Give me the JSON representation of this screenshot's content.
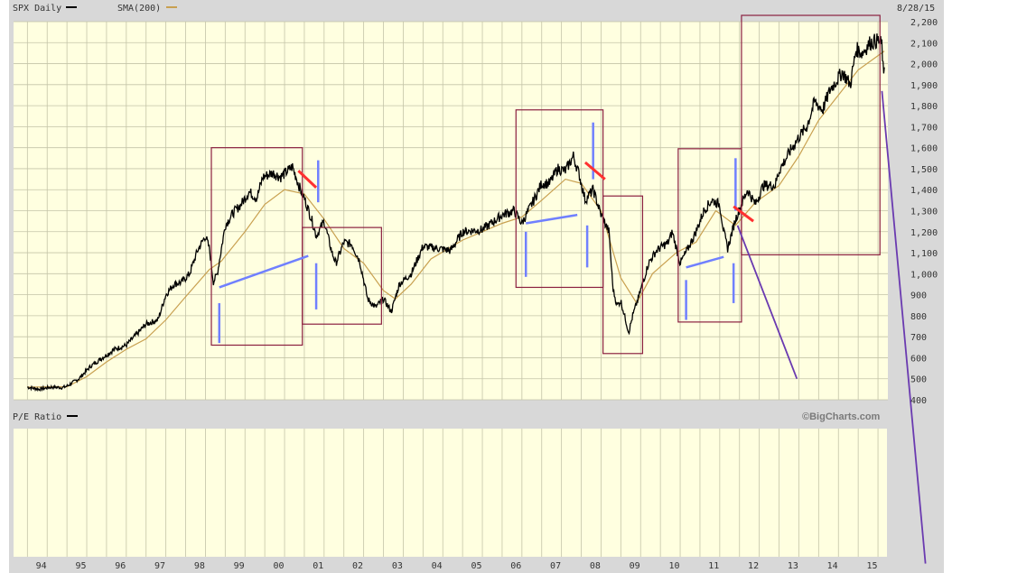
{
  "header": {
    "series_label": "SPX Daily",
    "sma_label": "SMA(200)",
    "date": "8/28/15"
  },
  "colors": {
    "plot_bg": "#ffffe0",
    "frame_bg": "#d8d8d8",
    "grid": "#c4c4a8",
    "price": "#000000",
    "sma": "#c8a050",
    "box": "#8b2040",
    "blue": "#7080ff",
    "red": "#ff3030",
    "purple": "#6a3ab0",
    "credit": "#7a7a7a"
  },
  "lower_panel": {
    "label": "P/E Ratio",
    "credit": "©BigCharts.com"
  },
  "chart_data": {
    "type": "line",
    "title": "SPX Daily",
    "series": [
      {
        "name": "SPX Daily",
        "points": [
          [
            1994.0,
            460
          ],
          [
            1994.3,
            450
          ],
          [
            1994.6,
            460
          ],
          [
            1994.9,
            458
          ],
          [
            1995.0,
            465
          ],
          [
            1995.3,
            500
          ],
          [
            1995.6,
            560
          ],
          [
            1995.9,
            600
          ],
          [
            1996.2,
            640
          ],
          [
            1996.5,
            660
          ],
          [
            1996.8,
            720
          ],
          [
            1997.0,
            760
          ],
          [
            1997.3,
            780
          ],
          [
            1997.5,
            900
          ],
          [
            1997.7,
            950
          ],
          [
            1997.9,
            960
          ],
          [
            1998.1,
            1000
          ],
          [
            1998.3,
            1110
          ],
          [
            1998.5,
            1180
          ],
          [
            1998.6,
            1120
          ],
          [
            1998.7,
            960
          ],
          [
            1998.8,
            1000
          ],
          [
            1999.0,
            1230
          ],
          [
            1999.2,
            1290
          ],
          [
            1999.4,
            1330
          ],
          [
            1999.6,
            1390
          ],
          [
            1999.8,
            1360
          ],
          [
            1999.95,
            1460
          ],
          [
            2000.2,
            1480
          ],
          [
            2000.4,
            1460
          ],
          [
            2000.7,
            1510
          ],
          [
            2000.9,
            1400
          ],
          [
            2001.0,
            1360
          ],
          [
            2001.2,
            1250
          ],
          [
            2001.3,
            1180
          ],
          [
            2001.5,
            1250
          ],
          [
            2001.7,
            1100
          ],
          [
            2001.8,
            1050
          ],
          [
            2002.0,
            1150
          ],
          [
            2002.2,
            1140
          ],
          [
            2002.4,
            1060
          ],
          [
            2002.6,
            880
          ],
          [
            2002.8,
            840
          ],
          [
            2003.0,
            880
          ],
          [
            2003.2,
            820
          ],
          [
            2003.4,
            950
          ],
          [
            2003.7,
            1000
          ],
          [
            2004.0,
            1130
          ],
          [
            2004.4,
            1120
          ],
          [
            2004.7,
            1110
          ],
          [
            2005.0,
            1200
          ],
          [
            2005.5,
            1210
          ],
          [
            2005.8,
            1250
          ],
          [
            2006.0,
            1280
          ],
          [
            2006.3,
            1300
          ],
          [
            2006.5,
            1240
          ],
          [
            2006.8,
            1350
          ],
          [
            2007.0,
            1430
          ],
          [
            2007.2,
            1430
          ],
          [
            2007.4,
            1500
          ],
          [
            2007.6,
            1490
          ],
          [
            2007.8,
            1560
          ],
          [
            2007.95,
            1470
          ],
          [
            2008.1,
            1350
          ],
          [
            2008.3,
            1400
          ],
          [
            2008.5,
            1280
          ],
          [
            2008.7,
            1200
          ],
          [
            2008.8,
            930
          ],
          [
            2008.9,
            850
          ],
          [
            2009.0,
            870
          ],
          [
            2009.2,
            720
          ],
          [
            2009.3,
            800
          ],
          [
            2009.5,
            920
          ],
          [
            2009.7,
            1050
          ],
          [
            2009.9,
            1110
          ],
          [
            2010.2,
            1150
          ],
          [
            2010.3,
            1200
          ],
          [
            2010.5,
            1050
          ],
          [
            2010.7,
            1120
          ],
          [
            2010.9,
            1200
          ],
          [
            2011.1,
            1300
          ],
          [
            2011.3,
            1350
          ],
          [
            2011.5,
            1330
          ],
          [
            2011.6,
            1200
          ],
          [
            2011.7,
            1120
          ],
          [
            2011.9,
            1260
          ],
          [
            2012.2,
            1400
          ],
          [
            2012.4,
            1330
          ],
          [
            2012.6,
            1420
          ],
          [
            2012.9,
            1420
          ],
          [
            2013.0,
            1490
          ],
          [
            2013.3,
            1590
          ],
          [
            2013.5,
            1650
          ],
          [
            2013.7,
            1700
          ],
          [
            2013.9,
            1820
          ],
          [
            2014.1,
            1780
          ],
          [
            2014.3,
            1880
          ],
          [
            2014.6,
            1960
          ],
          [
            2014.8,
            1900
          ],
          [
            2014.95,
            2070
          ],
          [
            2015.1,
            2050
          ],
          [
            2015.3,
            2100
          ],
          [
            2015.5,
            2110
          ],
          [
            2015.6,
            2090
          ],
          [
            2015.65,
            1900
          ],
          [
            2015.66,
            1990
          ]
        ]
      },
      {
        "name": "SMA(200)",
        "points": [
          [
            1994.0,
            460
          ],
          [
            1995.0,
            462
          ],
          [
            1995.5,
            510
          ],
          [
            1996.0,
            580
          ],
          [
            1996.5,
            640
          ],
          [
            1997.0,
            690
          ],
          [
            1997.5,
            780
          ],
          [
            1998.0,
            890
          ],
          [
            1998.6,
            1020
          ],
          [
            1998.9,
            1060
          ],
          [
            1999.5,
            1200
          ],
          [
            2000.0,
            1330
          ],
          [
            2000.5,
            1400
          ],
          [
            2001.0,
            1380
          ],
          [
            2001.5,
            1260
          ],
          [
            2002.0,
            1120
          ],
          [
            2002.5,
            1050
          ],
          [
            2003.0,
            920
          ],
          [
            2003.3,
            880
          ],
          [
            2003.7,
            950
          ],
          [
            2004.2,
            1070
          ],
          [
            2005.0,
            1160
          ],
          [
            2006.0,
            1240
          ],
          [
            2006.5,
            1270
          ],
          [
            2007.0,
            1350
          ],
          [
            2007.6,
            1450
          ],
          [
            2008.0,
            1430
          ],
          [
            2008.5,
            1300
          ],
          [
            2009.0,
            980
          ],
          [
            2009.4,
            860
          ],
          [
            2009.8,
            1000
          ],
          [
            2010.4,
            1100
          ],
          [
            2010.9,
            1150
          ],
          [
            2011.4,
            1300
          ],
          [
            2011.9,
            1230
          ],
          [
            2012.4,
            1340
          ],
          [
            2013.0,
            1420
          ],
          [
            2013.5,
            1560
          ],
          [
            2014.0,
            1730
          ],
          [
            2014.5,
            1850
          ],
          [
            2015.0,
            1970
          ],
          [
            2015.66,
            2060
          ]
        ]
      }
    ],
    "x_tick_labels": [
      "94",
      "95",
      "96",
      "97",
      "98",
      "99",
      "00",
      "01",
      "02",
      "03",
      "04",
      "05",
      "06",
      "07",
      "08",
      "09",
      "10",
      "11",
      "12",
      "13",
      "14",
      "15"
    ],
    "x_ticks": [
      1994,
      1995,
      1996,
      1997,
      1998,
      1999,
      2000,
      2001,
      2002,
      2003,
      2004,
      2005,
      2006,
      2007,
      2008,
      2009,
      2010,
      2011,
      2012,
      2013,
      2014,
      2015
    ],
    "y_ticks": [
      400,
      500,
      600,
      700,
      800,
      900,
      1000,
      1100,
      1200,
      1300,
      1400,
      1500,
      1600,
      1700,
      1800,
      1900,
      2000,
      2100,
      2200
    ],
    "y_tick_labels": [
      "400",
      "500",
      "600",
      "700",
      "800",
      "900",
      "1,000",
      "1,100",
      "1,200",
      "1,300",
      "1,400",
      "1,500",
      "1,600",
      "1,700",
      "1,800",
      "1,900",
      "2,000",
      "2,100",
      "2,200"
    ],
    "xlim": [
      1993.65,
      2015.75
    ],
    "ylim": [
      400,
      2200
    ],
    "grid": true,
    "annotations": {
      "boxes": [
        {
          "x0": 1998.65,
          "x1": 2000.95,
          "y0": 1600,
          "y1": 660
        },
        {
          "x0": 2000.95,
          "x1": 2002.95,
          "y0": 1220,
          "y1": 760
        },
        {
          "x0": 2006.35,
          "x1": 2008.55,
          "y0": 1780,
          "y1": 935
        },
        {
          "x0": 2008.55,
          "x1": 2009.55,
          "y0": 1370,
          "y1": 620
        },
        {
          "x0": 2010.45,
          "x1": 2012.05,
          "y0": 1595,
          "y1": 770
        },
        {
          "x0": 2012.05,
          "x1": 2015.55,
          "y0": 2230,
          "y1": 1090
        }
      ],
      "blue_lines": [
        {
          "x0": 1998.85,
          "y0": 935,
          "x1": 2001.1,
          "y1": 1085
        },
        {
          "x0": 1998.85,
          "y0": 860,
          "x1": 1998.85,
          "y1": 670
        },
        {
          "x0": 2001.35,
          "y0": 1540,
          "x1": 2001.35,
          "y1": 1340
        },
        {
          "x0": 2001.3,
          "y0": 1050,
          "x1": 2001.3,
          "y1": 830
        },
        {
          "x0": 2006.6,
          "y0": 1240,
          "x1": 2007.9,
          "y1": 1280
        },
        {
          "x0": 2006.6,
          "y0": 1200,
          "x1": 2006.6,
          "y1": 985
        },
        {
          "x0": 2008.3,
          "y0": 1720,
          "x1": 2008.3,
          "y1": 1450
        },
        {
          "x0": 2008.15,
          "y0": 1230,
          "x1": 2008.15,
          "y1": 1030
        },
        {
          "x0": 2010.65,
          "y0": 1030,
          "x1": 2011.6,
          "y1": 1080
        },
        {
          "x0": 2010.65,
          "y0": 970,
          "x1": 2010.65,
          "y1": 780
        },
        {
          "x0": 2011.9,
          "y0": 1550,
          "x1": 2011.9,
          "y1": 1300
        },
        {
          "x0": 2011.85,
          "y0": 1050,
          "x1": 2011.85,
          "y1": 860
        }
      ],
      "red_lines": [
        {
          "x0": 2000.85,
          "y0": 1490,
          "x1": 2001.3,
          "y1": 1410
        },
        {
          "x0": 2008.1,
          "y0": 1530,
          "x1": 2008.6,
          "y1": 1450
        },
        {
          "x0": 2011.85,
          "y0": 1320,
          "x1": 2012.35,
          "y1": 1250
        }
      ],
      "purple_lines": [
        {
          "x0": 2011.95,
          "y0": 1230,
          "x1": 2013.45,
          "y1": 500
        },
        {
          "x0": 2015.6,
          "y0": 1870,
          "x1": 2016.7,
          "y1": -380
        }
      ]
    }
  }
}
